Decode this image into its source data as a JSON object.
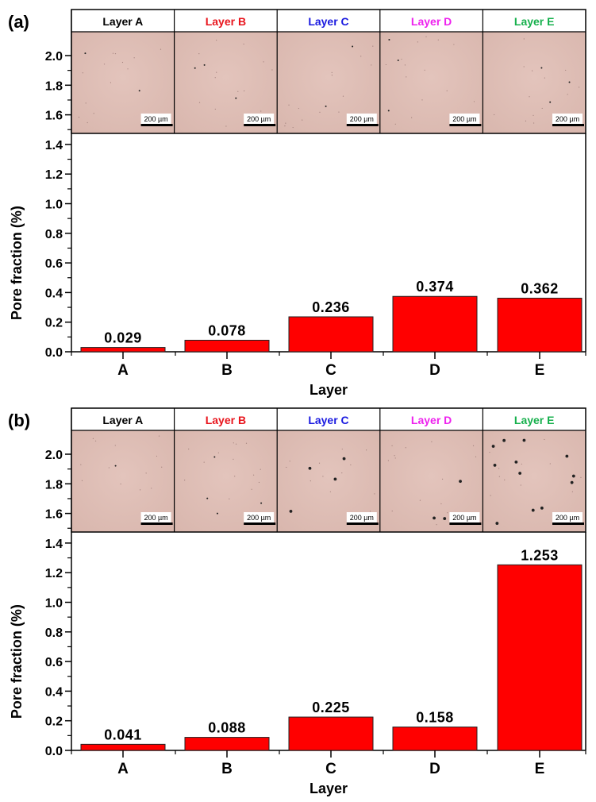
{
  "chart_data": [
    {
      "type": "bar",
      "panel_label": "(a)",
      "categories": [
        "A",
        "B",
        "C",
        "D",
        "E"
      ],
      "values": [
        0.029,
        0.078,
        0.236,
        0.374,
        0.362
      ],
      "value_labels": [
        "0.029",
        "0.078",
        "0.236",
        "0.374",
        "0.362"
      ],
      "xlabel": "Layer",
      "ylabel": "Pore fraction (%)",
      "ylim": [
        0,
        2.1
      ],
      "yticks": [
        "0.0",
        "0.2",
        "0.4",
        "0.6",
        "0.8",
        "1.0",
        "1.2",
        "1.4",
        "1.6",
        "1.8",
        "2.0"
      ],
      "bar_color": "#ff0000",
      "grid": false,
      "image_strip": {
        "labels": [
          "Layer A",
          "Layer B",
          "Layer C",
          "Layer D",
          "Layer E"
        ],
        "label_colors": [
          "#000000",
          "#e8141c",
          "#1a1ae0",
          "#ee22ee",
          "#16b04c"
        ],
        "scale_bar": "200 µm",
        "pore_counts": [
          2,
          3,
          2,
          3,
          3
        ]
      }
    },
    {
      "type": "bar",
      "panel_label": "(b)",
      "categories": [
        "A",
        "B",
        "C",
        "D",
        "E"
      ],
      "values": [
        0.041,
        0.088,
        0.225,
        0.158,
        1.253
      ],
      "value_labels": [
        "0.041",
        "0.088",
        "0.225",
        "0.158",
        "1.253"
      ],
      "xlabel": "Layer",
      "ylabel": "Pore fraction (%)",
      "ylim": [
        0,
        2.1
      ],
      "yticks": [
        "0.0",
        "0.2",
        "0.4",
        "0.6",
        "0.8",
        "1.0",
        "1.2",
        "1.4",
        "1.6",
        "1.8",
        "2.0"
      ],
      "bar_color": "#ff0000",
      "grid": false,
      "image_strip": {
        "labels": [
          "Layer A",
          "Layer B",
          "Layer C",
          "Layer D",
          "Layer E"
        ],
        "label_colors": [
          "#000000",
          "#e8141c",
          "#1a1ae0",
          "#ee22ee",
          "#16b04c"
        ],
        "scale_bar": "200 µm",
        "pore_counts": [
          1,
          4,
          4,
          3,
          12
        ]
      }
    }
  ],
  "colors": {
    "micrograph_base": "#d9b7ae",
    "micrograph_light": "#e3c4bc",
    "frame": "#000000"
  }
}
